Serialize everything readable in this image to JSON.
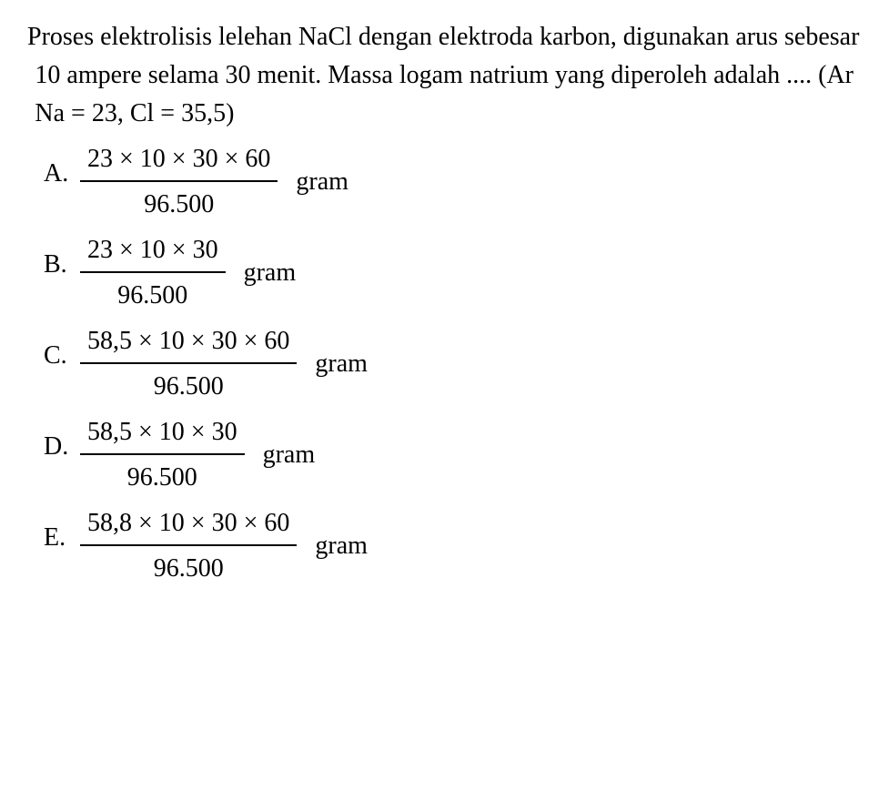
{
  "question": {
    "text": "Proses elektrolisis lelehan NaCl dengan elektroda karbon, digunakan arus sebesar 10 ampere selama 30 menit. Massa logam natrium yang diperoleh adalah .... (Ar Na = 23, Cl = 35,5)"
  },
  "unit": "gram",
  "denominator": "96.500",
  "options": {
    "A": {
      "label": "A.",
      "numerator": "23 × 10 × 30 × 60"
    },
    "B": {
      "label": "B.",
      "numerator": "23 × 10 × 30"
    },
    "C": {
      "label": "C.",
      "numerator": "58,5 × 10 × 30 × 60"
    },
    "D": {
      "label": "D.",
      "numerator": "58,5 × 10 × 30"
    },
    "E": {
      "label": "E.",
      "numerator": "58,8 × 10 × 30 × 60"
    }
  },
  "style": {
    "font_size_pt": 28,
    "text_color": "#000000",
    "background_color": "#ffffff",
    "fraction_bar_color": "#000000",
    "font_family": "Georgia, Times New Roman, serif"
  }
}
